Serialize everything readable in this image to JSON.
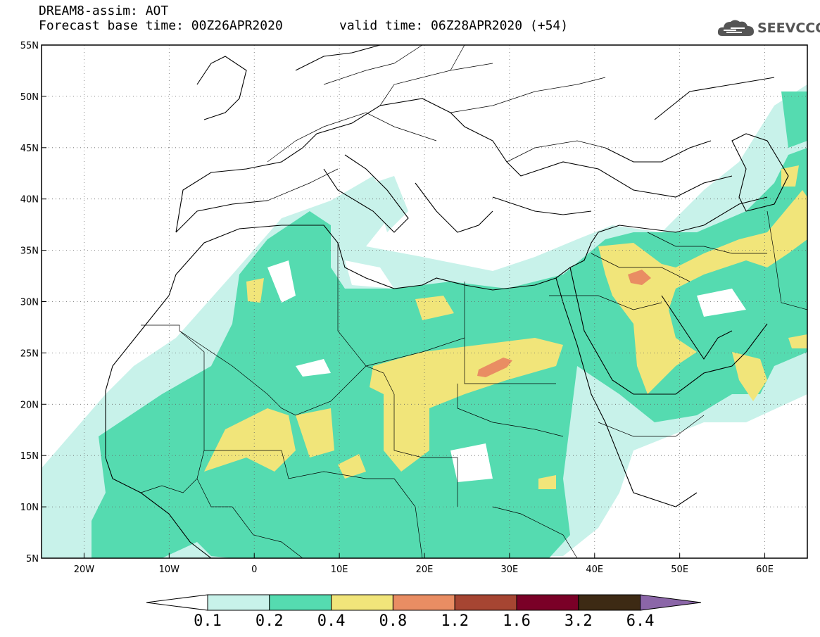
{
  "title": {
    "line1": "DREAM8-assim: AOT",
    "base_time": "Forecast base time: 00Z26APR2020",
    "valid_time": "valid time: 06Z28APR2020 (+54)"
  },
  "logo": {
    "icon": "cloud-icon",
    "text": "SEEVCCC"
  },
  "axes": {
    "lon_range": [
      -25,
      65
    ],
    "lat_range": [
      5,
      55
    ],
    "lat_ticks": [
      {
        "value": 55,
        "label": "55N"
      },
      {
        "value": 50,
        "label": "50N"
      },
      {
        "value": 45,
        "label": "45N"
      },
      {
        "value": 40,
        "label": "40N"
      },
      {
        "value": 35,
        "label": "35N"
      },
      {
        "value": 30,
        "label": "30N"
      },
      {
        "value": 25,
        "label": "25N"
      },
      {
        "value": 20,
        "label": "20N"
      },
      {
        "value": 15,
        "label": "15N"
      },
      {
        "value": 10,
        "label": "10N"
      },
      {
        "value": 5,
        "label": "5N"
      }
    ],
    "lon_ticks": [
      {
        "value": -20,
        "label": "20W"
      },
      {
        "value": -10,
        "label": "10W"
      },
      {
        "value": 0,
        "label": "0"
      },
      {
        "value": 10,
        "label": "10E"
      },
      {
        "value": 20,
        "label": "20E"
      },
      {
        "value": 30,
        "label": "30E"
      },
      {
        "value": 40,
        "label": "40E"
      },
      {
        "value": 50,
        "label": "50E"
      },
      {
        "value": 60,
        "label": "60E"
      }
    ],
    "grid": "dotted"
  },
  "colorbar": {
    "colors": [
      "#c8f2ea",
      "#55dbb0",
      "#f1e57a",
      "#e98d63",
      "#a64532",
      "#7a0027",
      "#3d2a14",
      "#8b66a8"
    ],
    "labels": [
      "0.1",
      "0.2",
      "0.4",
      "0.8",
      "1.2",
      "1.6",
      "3.2",
      "6.4"
    ]
  }
}
